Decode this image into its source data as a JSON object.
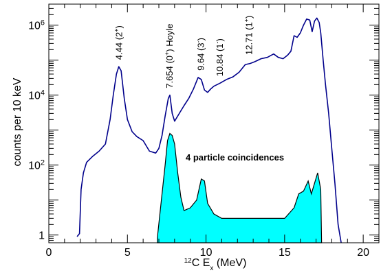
{
  "chart_data": {
    "type": "line",
    "xlabel_pre": "12",
    "xlabel_mid": "C E",
    "xlabel_sub": "x",
    "xlabel_post": " (MeV)",
    "ylabel": "counts per 10 keV",
    "xlim": [
      0,
      21
    ],
    "ylim": [
      0.6,
      4000000
    ],
    "yscale": "log",
    "x_ticks": [
      0,
      5,
      10,
      15,
      20
    ],
    "y_ticks": [
      {
        "value": 1,
        "base": "1",
        "exp": ""
      },
      {
        "value": 100,
        "base": "10",
        "exp": "2"
      },
      {
        "value": 10000,
        "base": "10",
        "exp": "4"
      },
      {
        "value": 1000000,
        "base": "10",
        "exp": "6"
      }
    ],
    "inner_label": "4 particle coincidences",
    "annotations": [
      {
        "x": 4.44,
        "pre": "4.44 (2",
        "sup": "+",
        "post": ")"
      },
      {
        "x": 7.654,
        "pre": "7.654 (0",
        "sup": "+",
        "post": ") Hoyle"
      },
      {
        "x": 9.64,
        "pre": "9.64 (3",
        "sup": "-",
        "post": ")"
      },
      {
        "x": 10.84,
        "pre": "10.84 (1",
        "sup": "-",
        "post": ")"
      },
      {
        "x": 12.71,
        "pre": "12.71 (1",
        "sup": "+",
        "post": ")"
      }
    ],
    "series": [
      {
        "color": "#00008b",
        "x": [
          1.8,
          1.95,
          2.05,
          2.2,
          2.4,
          2.8,
          3.2,
          3.6,
          3.9,
          4.1,
          4.3,
          4.45,
          4.6,
          4.8,
          5.0,
          5.3,
          5.6,
          6.0,
          6.4,
          6.8,
          7.0,
          7.2,
          7.4,
          7.6,
          7.7,
          7.85,
          8.0,
          8.3,
          8.6,
          8.9,
          9.2,
          9.5,
          9.7,
          9.9,
          10.1,
          10.3,
          10.5,
          10.9,
          11.3,
          11.7,
          12.1,
          12.5,
          12.8,
          13.1,
          13.5,
          13.9,
          14.3,
          14.6,
          14.9,
          15.2,
          15.4,
          15.6,
          15.8,
          16.0,
          16.2,
          16.4,
          16.6,
          16.75,
          16.9,
          17.05,
          17.2,
          17.3,
          17.45,
          17.6,
          17.8,
          18.0,
          18.2,
          18.4,
          18.6
        ],
        "y": [
          0.9,
          1.1,
          20,
          60,
          120,
          180,
          250,
          400,
          2000,
          10000,
          40000,
          65000,
          50000,
          8000,
          2000,
          900,
          650,
          500,
          250,
          220,
          300,
          700,
          2500,
          8000,
          10000,
          3000,
          1800,
          3000,
          5000,
          8000,
          15000,
          32000,
          28000,
          14000,
          12000,
          15000,
          18000,
          22000,
          28000,
          33000,
          45000,
          75000,
          80000,
          90000,
          110000,
          120000,
          150000,
          120000,
          110000,
          140000,
          180000,
          500000,
          450000,
          600000,
          1000000,
          1500000,
          1400000,
          650000,
          1300000,
          1600000,
          1200000,
          600000,
          100000,
          20000,
          3000,
          300,
          30,
          2,
          0.5
        ]
      },
      {
        "color": "#00ffff",
        "x": [
          6.9,
          7.2,
          7.4,
          7.55,
          7.7,
          7.85,
          8.0,
          8.2,
          8.4,
          8.6,
          9.0,
          9.4,
          9.7,
          9.9,
          10.1,
          10.5,
          11.0,
          12.0,
          13.0,
          14.0,
          15.0,
          15.6,
          15.9,
          16.2,
          16.5,
          16.7,
          16.9,
          17.1,
          17.3,
          17.35
        ],
        "y": [
          0.8,
          15,
          100,
          500,
          800,
          700,
          400,
          60,
          12,
          5,
          6,
          10,
          40,
          35,
          8,
          4,
          3,
          3,
          3,
          3,
          3,
          6,
          15,
          18,
          35,
          15,
          30,
          60,
          20,
          0.6
        ]
      }
    ]
  }
}
